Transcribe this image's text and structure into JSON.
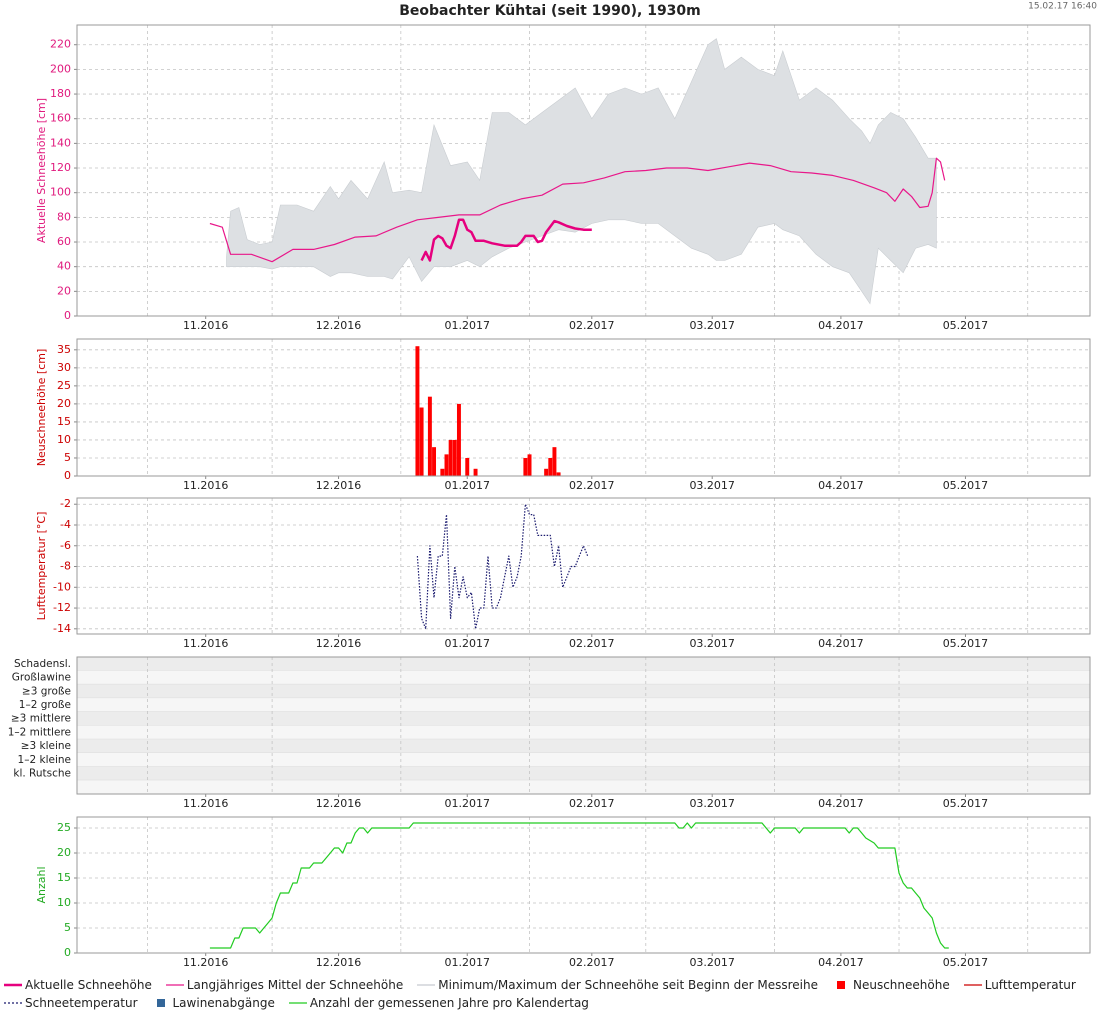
{
  "title": "Beobachter Kühtai (seit 1990), 1930m",
  "timestamp": "15.02.17 16:40",
  "chart_data": [
    {
      "type": "line",
      "y_label": "Aktuelle Schneehöhe [cm]",
      "axis_color": "#e0197d",
      "xlim": [
        0,
        244
      ],
      "xgrid": [
        17,
        47,
        78,
        109,
        137,
        168,
        198,
        229
      ],
      "xticks": [
        {
          "value": 31,
          "label": "11.2016"
        },
        {
          "value": 63,
          "label": "12.2016"
        },
        {
          "value": 94,
          "label": "01.2017"
        },
        {
          "value": 124,
          "label": "02.2017"
        },
        {
          "value": 153,
          "label": "03.2017"
        },
        {
          "value": 184,
          "label": "04.2017"
        },
        {
          "value": 214,
          "label": "05.2017"
        }
      ],
      "ylim": [
        0,
        236
      ],
      "yticks": [
        0,
        20,
        40,
        60,
        80,
        100,
        120,
        140,
        160,
        180,
        200,
        220
      ],
      "grid": true,
      "series": [
        {
          "name": "Langjähriges Mittel der Schneehöhe",
          "color": "#e8178a",
          "line_width": 1.2,
          "x": [
            32,
            35,
            37,
            42,
            47,
            52,
            57,
            62,
            67,
            72,
            77,
            82,
            87,
            92,
            97,
            102,
            107,
            112,
            117,
            122,
            127,
            132,
            137,
            142,
            147,
            152,
            157,
            162,
            167,
            172,
            177,
            182,
            187,
            192,
            195,
            197,
            199,
            201,
            203,
            205,
            206,
            207,
            208,
            209
          ],
          "values": [
            75,
            72,
            50,
            50,
            44,
            54,
            54,
            58,
            64,
            65,
            72,
            78,
            80,
            82,
            82,
            90,
            95,
            98,
            107,
            108,
            112,
            117,
            118,
            120,
            120,
            118,
            121,
            124,
            122,
            117,
            116,
            114,
            110,
            104,
            100,
            93,
            103,
            97,
            88,
            89,
            100,
            128,
            125,
            110
          ]
        },
        {
          "name": "Aktuelle Schneehöhe",
          "color": "#e6007e",
          "line_width": 2.5,
          "x": [
            83,
            84,
            85,
            86,
            87,
            88,
            89,
            90,
            91,
            92,
            93,
            94,
            95,
            96,
            98,
            100,
            103,
            106,
            107,
            108,
            109,
            110,
            111,
            112,
            113,
            115,
            116,
            118,
            120,
            122,
            124
          ],
          "values": [
            45,
            52,
            45,
            62,
            65,
            63,
            57,
            55,
            65,
            78,
            78,
            70,
            68,
            61,
            61,
            59,
            57,
            57,
            60,
            65,
            65,
            65,
            60,
            61,
            68,
            77,
            76,
            73,
            71,
            70,
            70
          ]
        },
        {
          "name": "Minimum/Maximum der Schneehöhe seit Beginn der Messreihe",
          "color": "#dde0e3",
          "kind": "band",
          "x": [
            36,
            37,
            39,
            41,
            44,
            47,
            49,
            53,
            57,
            61,
            63,
            66,
            70,
            74,
            76,
            80,
            83,
            86,
            90,
            94,
            97,
            100,
            104,
            108,
            112,
            116,
            120,
            124,
            128,
            132,
            136,
            140,
            144,
            148,
            152,
            154,
            156,
            160,
            164,
            168,
            170,
            174,
            178,
            182,
            186,
            189,
            191,
            193,
            196,
            199,
            202,
            205,
            207
          ],
          "high": [
            48,
            85,
            88,
            62,
            58,
            60,
            90,
            90,
            85,
            105,
            95,
            110,
            95,
            125,
            100,
            102,
            100,
            155,
            122,
            125,
            110,
            165,
            165,
            155,
            165,
            175,
            185,
            160,
            180,
            185,
            180,
            185,
            160,
            190,
            220,
            225,
            200,
            210,
            200,
            195,
            215,
            175,
            185,
            175,
            160,
            150,
            140,
            155,
            165,
            160,
            145,
            128,
            128
          ],
          "low": [
            40,
            40,
            40,
            40,
            40,
            38,
            40,
            40,
            40,
            32,
            35,
            35,
            32,
            32,
            30,
            48,
            28,
            40,
            40,
            45,
            40,
            48,
            55,
            60,
            65,
            70,
            68,
            75,
            78,
            78,
            75,
            75,
            65,
            55,
            50,
            45,
            45,
            50,
            72,
            75,
            70,
            65,
            50,
            40,
            35,
            20,
            10,
            55,
            45,
            35,
            55,
            58,
            55
          ]
        }
      ]
    },
    {
      "type": "bar",
      "y_label": "Neuschneehöhe [cm]",
      "axis_color": "#cc0000",
      "xlim": [
        0,
        244
      ],
      "xgrid": [
        17,
        47,
        78,
        109,
        137,
        168,
        198,
        229
      ],
      "xticks": [
        {
          "value": 31,
          "label": "11.2016"
        },
        {
          "value": 63,
          "label": "12.2016"
        },
        {
          "value": 94,
          "label": "01.2017"
        },
        {
          "value": 124,
          "label": "02.2017"
        },
        {
          "value": 153,
          "label": "03.2017"
        },
        {
          "value": 184,
          "label": "04.2017"
        },
        {
          "value": 214,
          "label": "05.2017"
        }
      ],
      "ylim": [
        0,
        38
      ],
      "yticks": [
        0,
        5,
        10,
        15,
        20,
        25,
        30,
        35
      ],
      "grid": true,
      "series": [
        {
          "name": "Neuschneehöhe",
          "color": "#ff0000",
          "x": [
            82,
            83,
            85,
            86,
            88,
            89,
            90,
            91,
            92,
            94,
            96,
            108,
            109,
            113,
            114,
            115,
            116
          ],
          "values": [
            36,
            19,
            22,
            8,
            2,
            6,
            10,
            10,
            20,
            5,
            2,
            5,
            6,
            2,
            5,
            8,
            1
          ]
        }
      ]
    },
    {
      "type": "line",
      "y_label": "Lufttemperatur [°C]",
      "axis_color": "#cc0000",
      "xlim": [
        0,
        244
      ],
      "xgrid": [
        17,
        47,
        78,
        109,
        137,
        168,
        198,
        229
      ],
      "xticks": [
        {
          "value": 31,
          "label": "11.2016"
        },
        {
          "value": 63,
          "label": "12.2016"
        },
        {
          "value": 94,
          "label": "01.2017"
        },
        {
          "value": 124,
          "label": "02.2017"
        },
        {
          "value": 153,
          "label": "03.2017"
        },
        {
          "value": 184,
          "label": "04.2017"
        },
        {
          "value": 214,
          "label": "05.2017"
        }
      ],
      "ylim": [
        -14.5,
        -1.4
      ],
      "yticks": [
        -14,
        -12,
        -10,
        -8,
        -6,
        -4,
        -2
      ],
      "grid": true,
      "series": [
        {
          "name": "Lufttemperatur",
          "color": "#cc0000",
          "line_width": 1,
          "x": [],
          "values": []
        },
        {
          "name": "Schneetemperatur",
          "color": "#1a1a6e",
          "line_width": 1.2,
          "dotted": true,
          "x": [
            82,
            83,
            84,
            85,
            86,
            87,
            88,
            89,
            90,
            91,
            92,
            93,
            94,
            95,
            96,
            97,
            98,
            99,
            100,
            101,
            102,
            103,
            104,
            105,
            106,
            107,
            108,
            109,
            110,
            111,
            112,
            113,
            114,
            115,
            116,
            117,
            118,
            119,
            120,
            121,
            122,
            123
          ],
          "values": [
            -7,
            -13,
            -14,
            -6,
            -11,
            -7,
            -7,
            -3,
            -13,
            -8,
            -11,
            -9,
            -11,
            -10.5,
            -14,
            -12,
            -12,
            -7,
            -12,
            -12,
            -11,
            -9,
            -7,
            -10,
            -9,
            -7,
            -2,
            -3,
            -3,
            -5,
            -5,
            -5,
            -5,
            -8,
            -6,
            -10,
            -9,
            -8,
            -8,
            -7,
            -6,
            -7
          ]
        }
      ]
    },
    {
      "type": "scatter",
      "axis_color": "#222222",
      "xlim": [
        0,
        244
      ],
      "xgrid": [
        17,
        47,
        78,
        109,
        137,
        168,
        198,
        229
      ],
      "xticks": [
        {
          "value": 31,
          "label": "11.2016"
        },
        {
          "value": 63,
          "label": "12.2016"
        },
        {
          "value": 94,
          "label": "01.2017"
        },
        {
          "value": 124,
          "label": "02.2017"
        },
        {
          "value": 153,
          "label": "03.2017"
        },
        {
          "value": 184,
          "label": "04.2017"
        },
        {
          "value": 214,
          "label": "05.2017"
        }
      ],
      "ycategories": [
        "Schadensl.",
        "Großlawine",
        "≥3 große",
        "1–2 große",
        "≥3 mittlere",
        "1–2 mittlere",
        "≥3 kleine",
        "1–2 kleine",
        "kl. Rutsche"
      ],
      "series": [
        {
          "name": "Lawinenabgänge",
          "color": "#336699",
          "x": [],
          "values": []
        }
      ]
    },
    {
      "type": "line",
      "y_label": "Anzahl",
      "axis_color": "#22aa22",
      "xlim": [
        0,
        244
      ],
      "xgrid": [
        17,
        47,
        78,
        109,
        137,
        168,
        198,
        229
      ],
      "xticks": [
        {
          "value": 31,
          "label": "11.2016"
        },
        {
          "value": 63,
          "label": "12.2016"
        },
        {
          "value": 94,
          "label": "01.2017"
        },
        {
          "value": 124,
          "label": "02.2017"
        },
        {
          "value": 153,
          "label": "03.2017"
        },
        {
          "value": 184,
          "label": "04.2017"
        },
        {
          "value": 214,
          "label": "05.2017"
        }
      ],
      "ylim": [
        0,
        27.2
      ],
      "yticks": [
        0,
        5,
        10,
        15,
        20,
        25
      ],
      "grid": true,
      "series": [
        {
          "name": "Anzahl der gemessenen Jahre pro Kalendertag",
          "color": "#22cc22",
          "line_width": 1.2,
          "x": [
            32,
            36,
            37,
            38,
            39,
            40,
            43,
            44,
            45,
            46,
            47,
            48,
            49,
            51,
            52,
            53,
            54,
            56,
            57,
            59,
            60,
            61,
            62,
            63,
            64,
            65,
            66,
            67,
            68,
            69,
            70,
            71,
            80,
            81,
            144,
            145,
            146,
            147,
            148,
            149,
            165,
            167,
            168,
            173,
            174,
            175,
            185,
            186,
            187,
            188,
            189,
            190,
            192,
            193,
            197,
            198,
            199,
            200,
            201,
            202,
            203,
            204,
            205,
            206,
            207,
            208,
            209,
            210
          ],
          "values": [
            1,
            1,
            1,
            3,
            3,
            5,
            5,
            4,
            5,
            6,
            7,
            10,
            12,
            12,
            14,
            14,
            17,
            17,
            18,
            18,
            19,
            20,
            21,
            21,
            20,
            22,
            22,
            24,
            25,
            25,
            24,
            25,
            25,
            26,
            26,
            25,
            25,
            26,
            25,
            26,
            26,
            24,
            25,
            25,
            24,
            25,
            25,
            24,
            25,
            25,
            24,
            23,
            22,
            21,
            21,
            16,
            14,
            13,
            13,
            12,
            11,
            9,
            8,
            7,
            4,
            2,
            1,
            1
          ]
        }
      ]
    }
  ]
}
